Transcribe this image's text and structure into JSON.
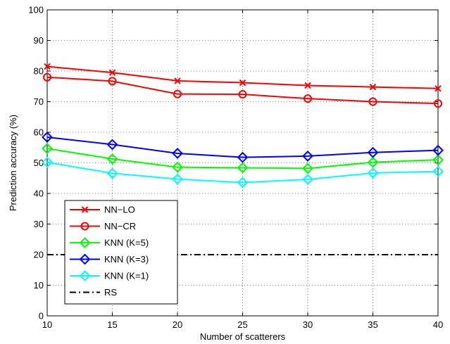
{
  "chart_data": {
    "type": "line",
    "xlabel": "Number of scatterers",
    "ylabel": "Prediction accuracy (%)",
    "x": [
      10,
      15,
      20,
      25,
      30,
      35,
      40
    ],
    "xlim": [
      10,
      40
    ],
    "ylim": [
      0,
      100
    ],
    "xticks": [
      "10",
      "15",
      "20",
      "25",
      "30",
      "35",
      "40"
    ],
    "yticks": [
      "0",
      "10",
      "20",
      "30",
      "40",
      "50",
      "60",
      "70",
      "80",
      "90",
      "100"
    ],
    "grid": true,
    "legend_position": "bottom-left",
    "series": [
      {
        "name": "NN−LO",
        "color": "#ff0000",
        "marker": "x",
        "dash": "solid",
        "values": [
          81.5,
          79.5,
          76.8,
          76.2,
          75.3,
          74.8,
          74.3
        ]
      },
      {
        "name": "NN−CR",
        "color": "#ff0000",
        "marker": "circle",
        "dash": "solid",
        "values": [
          78.0,
          76.7,
          72.5,
          72.4,
          71.0,
          70.0,
          69.4
        ]
      },
      {
        "name": "KNN (K=5)",
        "color": "#00ff00",
        "marker": "diamond",
        "dash": "solid",
        "values": [
          54.7,
          51.3,
          48.6,
          48.4,
          48.2,
          50.2,
          51.0
        ]
      },
      {
        "name": "KNN (K=3)",
        "color": "#0000ff",
        "marker": "diamond",
        "dash": "solid",
        "values": [
          58.4,
          56.0,
          53.1,
          51.8,
          52.2,
          53.4,
          54.1
        ]
      },
      {
        "name": "KNN (K=1)",
        "color": "#00ffff",
        "marker": "diamond",
        "dash": "solid",
        "values": [
          50.2,
          46.6,
          44.7,
          43.6,
          44.6,
          46.7,
          47.2
        ]
      },
      {
        "name": "RS",
        "color": "#000000",
        "marker": "none",
        "dash": "dashdot",
        "values": [
          20,
          20,
          20,
          20,
          20,
          20,
          20
        ]
      }
    ]
  }
}
